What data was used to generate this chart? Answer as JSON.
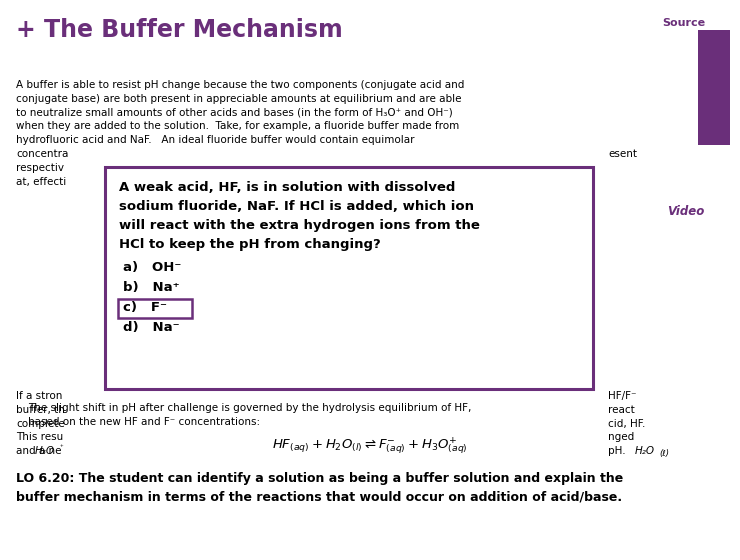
{
  "bg_color": "#ffffff",
  "title": "+ The Buffer Mechanism",
  "title_color": "#6a2f7a",
  "source_text": "Source",
  "source_color": "#6a2f7a",
  "source_bar_color": "#6a2f7a",
  "video_text": "Video",
  "video_color": "#6a2f7a",
  "popup_border_color": "#6a2f7a",
  "popup_bg": "#ffffff",
  "popup_question": "A weak acid, HF, is in solution with dissolved\nsodium fluoride, NaF. If HCl is added, which ion\nwill react with the extra hydrogen ions from the\nHCl to keep the pH from changing?",
  "popup_options": [
    "a)   OH⁻",
    "b)   Na⁺",
    "c)   F⁻",
    "d)   Na⁻"
  ],
  "popup_answer_idx": 2,
  "body1_lines": [
    "A buffer is able to resist pH change because the two components (conjugate acid and",
    "conjugate base) are both present in appreciable amounts at equilibrium and are able",
    "to neutralize small amounts of other acids and bases (in the form of H₃O⁺ and OH⁻)",
    "when they are added to the solution.  Take, for example, a fluoride buffer made from",
    "hydrofluoric acid and NaF.   An ideal fluoride buffer would contain equimolar",
    "concentra   tions of HF and F⁻, with HF and F⁻ (from NaF) present",
    "respectiv  ely at concentrations ~0.1 M.  In this state, the buffer components are     esent",
    "at, effecti  vely, equal concentrations."
  ],
  "body2_left_lines": [
    "If a stron  g acid (such as HCl) is added to the buffer, the                          HF/F⁻",
    "buffer, th  e F⁻ ion (the conjugate base of the weak acid HF) will              react",
    "complete  ly with the added H₃O⁺ ions to form more of the weak a            cid, HF.",
    "This resu  lts in a decrease in the concentration of F⁻, and an uncha          nged",
    "and a ne  w equilibrium is established with a slightly lower                           pH."
  ],
  "h3o_left": "   H₃O",
  "h2o_right": "H₂O(ℓ)",
  "body3_lines": [
    "The slight shift in pH after challenge is governed by the hydrolysis equilibrium of HF,",
    "based on the new HF and F⁻ concentrations:"
  ],
  "lo_lines": [
    "LO 6.20: The student can identify a solution as being a buffer solution and explain the",
    "buffer mechanism in terms of the reactions that would occur on addition of acid/base."
  ]
}
